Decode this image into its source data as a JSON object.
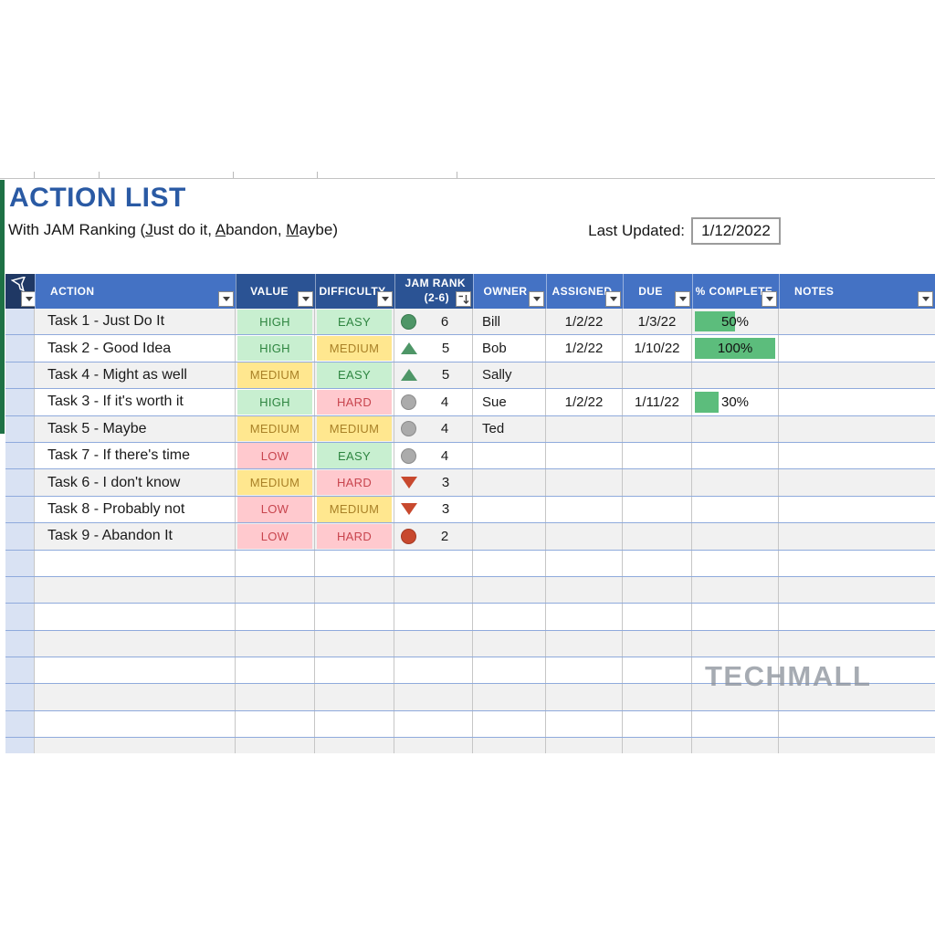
{
  "title": "ACTION LIST",
  "subtitle": {
    "parts": [
      {
        "t": "With JAM Ranking ("
      },
      {
        "t": "J",
        "underline": true
      },
      {
        "t": "ust do it, "
      },
      {
        "t": "A",
        "underline": true
      },
      {
        "t": "bandon, "
      },
      {
        "t": "M",
        "underline": true
      },
      {
        "t": "aybe)"
      }
    ]
  },
  "last_updated": {
    "label": "Last Updated:",
    "value": "1/12/2022"
  },
  "header": {
    "columns": [
      {
        "id": "filter",
        "label": ""
      },
      {
        "id": "action",
        "label": "ACTION"
      },
      {
        "id": "value",
        "label": "VALUE"
      },
      {
        "id": "difficulty",
        "label": "DIFFICULTY"
      },
      {
        "id": "jam_rank",
        "label_line1": "JAM RANK",
        "label_line2": "(2-6)"
      },
      {
        "id": "owner",
        "label": "OWNER"
      },
      {
        "id": "assigned",
        "label": "ASSIGNED"
      },
      {
        "id": "due",
        "label": "DUE"
      },
      {
        "id": "pct_complete",
        "label": "% COMPLETE"
      },
      {
        "id": "notes",
        "label": "NOTES"
      }
    ]
  },
  "tasks": [
    {
      "action": "Task 1 - Just Do It",
      "value": {
        "text": "HIGH",
        "tone": "good"
      },
      "difficulty": {
        "text": "EASY",
        "tone": "good"
      },
      "icon": "circle-green-icon",
      "rank": "6",
      "owner": "Bill",
      "assigned": "1/2/22",
      "due": "1/3/22",
      "pct": {
        "value": 50,
        "label": "50%"
      },
      "notes": ""
    },
    {
      "action": "Task 2 - Good Idea",
      "value": {
        "text": "HIGH",
        "tone": "good"
      },
      "difficulty": {
        "text": "MEDIUM",
        "tone": "neutral"
      },
      "icon": "triangle-up-green-icon",
      "rank": "5",
      "owner": "Bob",
      "assigned": "1/2/22",
      "due": "1/10/22",
      "pct": {
        "value": 100,
        "label": "100%"
      },
      "notes": ""
    },
    {
      "action": "Task 4 - Might as well",
      "value": {
        "text": "MEDIUM",
        "tone": "neutral"
      },
      "difficulty": {
        "text": "EASY",
        "tone": "good"
      },
      "icon": "triangle-up-green-icon",
      "rank": "5",
      "owner": "Sally",
      "assigned": "",
      "due": "",
      "pct": null,
      "notes": ""
    },
    {
      "action": "Task 3 - If it's worth it",
      "value": {
        "text": "HIGH",
        "tone": "good"
      },
      "difficulty": {
        "text": "HARD",
        "tone": "bad"
      },
      "icon": "circle-gray-icon",
      "rank": "4",
      "owner": "Sue",
      "assigned": "1/2/22",
      "due": "1/11/22",
      "pct": {
        "value": 30,
        "label": "30%"
      },
      "notes": ""
    },
    {
      "action": "Task 5 - Maybe",
      "value": {
        "text": "MEDIUM",
        "tone": "neutral"
      },
      "difficulty": {
        "text": "MEDIUM",
        "tone": "neutral"
      },
      "icon": "circle-gray-icon",
      "rank": "4",
      "owner": "Ted",
      "assigned": "",
      "due": "",
      "pct": null,
      "notes": ""
    },
    {
      "action": "Task 7 - If there's time",
      "value": {
        "text": "LOW",
        "tone": "bad"
      },
      "difficulty": {
        "text": "EASY",
        "tone": "good"
      },
      "icon": "circle-gray-icon",
      "rank": "4",
      "owner": "",
      "assigned": "",
      "due": "",
      "pct": null,
      "notes": ""
    },
    {
      "action": "Task 6 - I don't know",
      "value": {
        "text": "MEDIUM",
        "tone": "neutral"
      },
      "difficulty": {
        "text": "HARD",
        "tone": "bad"
      },
      "icon": "triangle-down-red-icon",
      "rank": "3",
      "owner": "",
      "assigned": "",
      "due": "",
      "pct": null,
      "notes": ""
    },
    {
      "action": "Task 8 - Probably not",
      "value": {
        "text": "LOW",
        "tone": "bad"
      },
      "difficulty": {
        "text": "MEDIUM",
        "tone": "neutral"
      },
      "icon": "triangle-down-red-icon",
      "rank": "3",
      "owner": "",
      "assigned": "",
      "due": "",
      "pct": null,
      "notes": ""
    },
    {
      "action": "Task 9 - Abandon It",
      "value": {
        "text": "LOW",
        "tone": "bad"
      },
      "difficulty": {
        "text": "HARD",
        "tone": "bad"
      },
      "icon": "circle-red-icon",
      "rank": "2",
      "owner": "",
      "assigned": "",
      "due": "",
      "pct": null,
      "notes": ""
    }
  ],
  "empty_row_count": 8,
  "watermark": "TECHMALL",
  "colors": {
    "title_blue": "#2A5AA4",
    "header_blue": "#4472C4",
    "header_dark_blue": "#2B5394",
    "header_navy": "#1F3864",
    "row_band_gray": "#F1F1F1",
    "row_line_blue": "#8FAADC",
    "left_column_blue": "#D9E2F3",
    "good_bg": "#C8EFD0",
    "good_text": "#2E8540",
    "neutral_bg": "#FFE78F",
    "neutral_text": "#A98127",
    "bad_bg": "#FFC9CE",
    "bad_text": "#C8454E",
    "progress_bar_green": "#5CBD7C",
    "icon_green": "#4E9667",
    "icon_gray": "#ABABAB",
    "icon_red": "#C8492E",
    "sheet_tab_green": "#1E7145",
    "watermark_gray": "#8D949C"
  }
}
